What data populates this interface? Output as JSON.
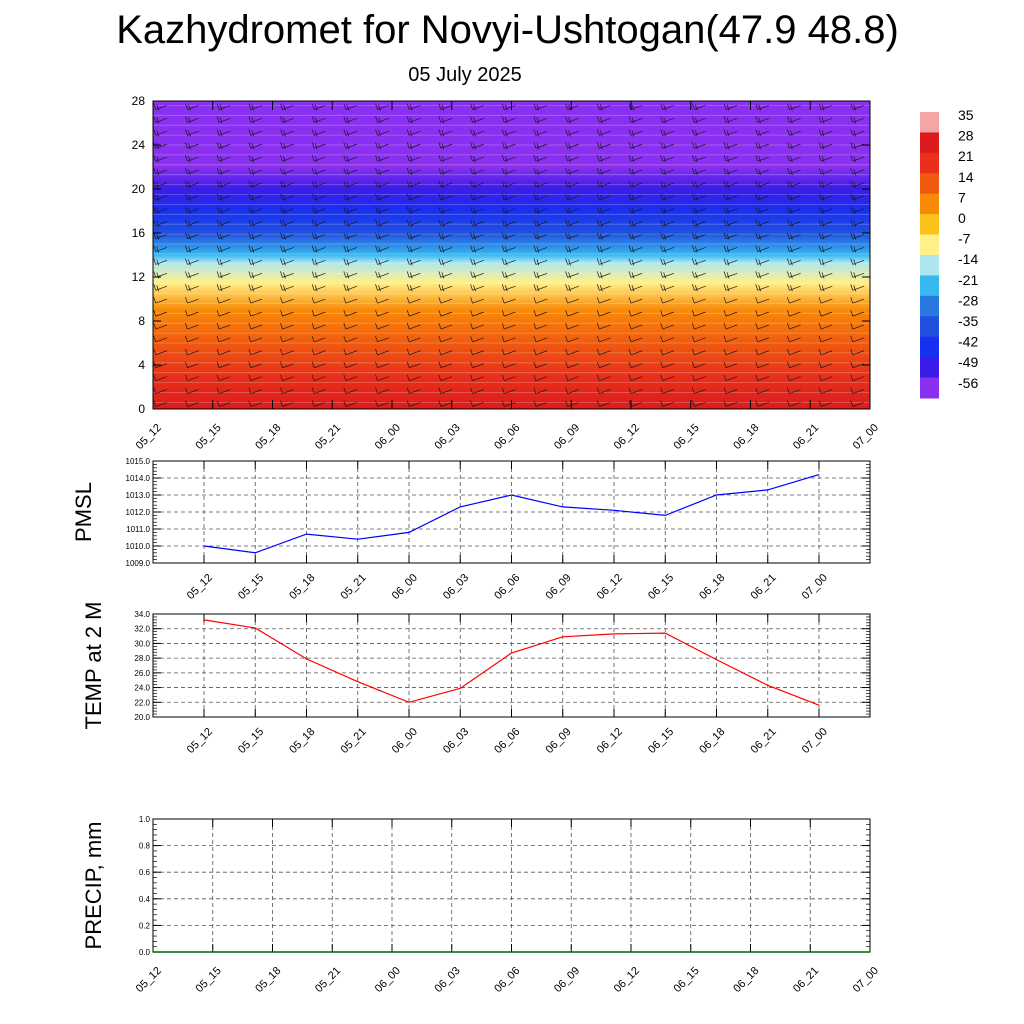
{
  "title": "Kazhydromet for Novyi-Ushtogan(47.9 48.8)",
  "subtitle": "05 July 2025",
  "chart_data": [
    {
      "type": "heatmap",
      "name": "temperature-cross-section",
      "x_tick_labels": [
        "05_12",
        "05_15",
        "05_18",
        "05_21",
        "06_00",
        "06_03",
        "06_06",
        "06_09",
        "06_12",
        "06_15",
        "06_18",
        "06_21",
        "07_00"
      ],
      "y_tick_labels": [
        "0",
        "4",
        "8",
        "12",
        "16",
        "20",
        "24",
        "28"
      ],
      "ylim": [
        0,
        28
      ],
      "colorbar": {
        "labels": [
          "35",
          "28",
          "21",
          "14",
          "7",
          "0",
          "-7",
          "-14",
          "-21",
          "-28",
          "-35",
          "-42",
          "-49",
          "-56"
        ],
        "colors": [
          "#f4a6a6",
          "#dc1c1c",
          "#e8301a",
          "#f05a10",
          "#f88a08",
          "#fcc21c",
          "#fff08a",
          "#aee6f0",
          "#38b8f0",
          "#2878e0",
          "#2050e0",
          "#1830f0",
          "#3c1ce8",
          "#8a30f0"
        ]
      },
      "temperature_profile": [
        {
          "level": 0,
          "value": 33
        },
        {
          "level": 3,
          "value": 27
        },
        {
          "level": 6,
          "value": 19
        },
        {
          "level": 9,
          "value": 10
        },
        {
          "level": 11.5,
          "value": 0
        },
        {
          "level": 13.3,
          "value": -10
        },
        {
          "level": 14,
          "value": -20
        },
        {
          "level": 16,
          "value": -28
        },
        {
          "level": 18,
          "value": -36
        },
        {
          "level": 20,
          "value": -46
        },
        {
          "level": 22,
          "value": -54
        },
        {
          "level": 24,
          "value": -60
        },
        {
          "level": 28,
          "value": -62
        }
      ]
    },
    {
      "type": "line",
      "ylabel": "PMSL",
      "x": [
        "05_12",
        "05_15",
        "05_18",
        "05_21",
        "06_00",
        "06_03",
        "06_06",
        "06_09",
        "06_12",
        "06_15",
        "06_18",
        "06_21",
        "07_00"
      ],
      "series": [
        {
          "values": [
            1010.0,
            1009.6,
            1010.7,
            1010.4,
            1010.8,
            1012.3,
            1013.0,
            1012.3,
            1012.1,
            1011.8,
            1013.0,
            1013.3,
            1014.2
          ],
          "color": "#0000ff"
        }
      ],
      "ylim": [
        1009.0,
        1015.0
      ],
      "y_tick_labels": [
        "1009.0",
        "1010.0",
        "1011.0",
        "1012.0",
        "1013.0",
        "1014.0",
        "1015.0"
      ],
      "grid": true
    },
    {
      "type": "line",
      "ylabel": "TEMP at 2 M",
      "x": [
        "05_12",
        "05_15",
        "05_18",
        "05_21",
        "06_00",
        "06_03",
        "06_06",
        "06_09",
        "06_12",
        "06_15",
        "06_18",
        "06_21",
        "07_00"
      ],
      "series": [
        {
          "values": [
            33.2,
            32.1,
            27.9,
            24.8,
            22.0,
            23.9,
            28.7,
            30.9,
            31.3,
            31.4,
            27.8,
            24.3,
            21.6
          ],
          "color": "#ff0000"
        }
      ],
      "ylim": [
        20.0,
        34.0
      ],
      "y_tick_labels": [
        "20.0",
        "22.0",
        "24.0",
        "26.0",
        "28.0",
        "30.0",
        "32.0",
        "34.0"
      ],
      "grid": true
    },
    {
      "type": "line",
      "ylabel": "PRECIP, mm",
      "x_tick_labels": [
        "05_12",
        "05_15",
        "05_18",
        "05_21",
        "06_00",
        "06_03",
        "06_06",
        "06_09",
        "06_12",
        "06_15",
        "06_18",
        "06_21",
        "07_00"
      ],
      "series": [
        {
          "values": [
            0,
            0,
            0,
            0,
            0,
            0,
            0,
            0,
            0,
            0,
            0,
            0,
            0
          ],
          "color": "#006400"
        }
      ],
      "ylim": [
        0.0,
        1.0
      ],
      "y_tick_labels": [
        "0.0",
        "0.2",
        "0.4",
        "0.6",
        "0.8",
        "1.0"
      ],
      "grid": true
    }
  ]
}
